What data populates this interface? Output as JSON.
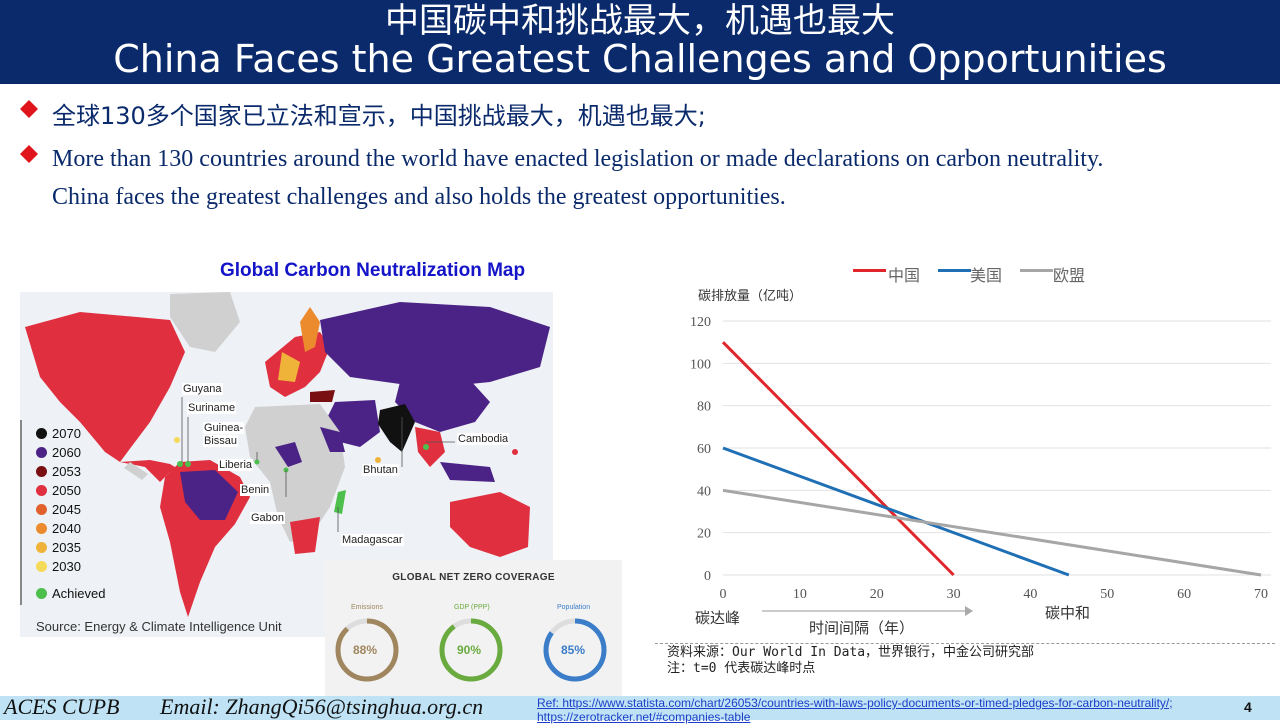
{
  "header": {
    "title_cn": "中国碳中和挑战最大，机遇也最大",
    "title_en": "China Faces the Greatest Challenges and Opportunities"
  },
  "bullets": {
    "cn": "全球130多个国家已立法和宣示，中国挑战最大，机遇也最大;",
    "en_line1": "More than 130 countries around the world have enacted legislation or made declarations on carbon neutrality.",
    "en_line2": "China faces the greatest challenges and also holds the greatest opportunities."
  },
  "map": {
    "title": "Global Carbon Neutralization Map",
    "legend": [
      {
        "label": "2070",
        "color": "#111111"
      },
      {
        "label": "2060",
        "color": "#4b2386"
      },
      {
        "label": "2053",
        "color": "#7a0f12"
      },
      {
        "label": "2050",
        "color": "#e03040"
      },
      {
        "label": "2045",
        "color": "#e2602c"
      },
      {
        "label": "2040",
        "color": "#ec8a2e"
      },
      {
        "label": "2035",
        "color": "#efb33a"
      },
      {
        "label": "2030",
        "color": "#f5da5a"
      },
      {
        "label": "Achieved",
        "color": "#4cbf4c"
      }
    ],
    "labels": {
      "guyana": "Guyana",
      "suriname": "Suriname",
      "guinea_bissau_1": "Guinea-",
      "guinea_bissau_2": "Bissau",
      "liberia": "Liberia",
      "benin": "Benin",
      "gabon": "Gabon",
      "madagascar": "Madagascar",
      "bhutan": "Bhutan",
      "cambodia": "Cambodia"
    },
    "source": "Source: Energy & Climate Intelligence Unit"
  },
  "coverage": {
    "title": "GLOBAL NET ZERO COVERAGE",
    "items": [
      {
        "label": "Emissions",
        "percent": 88,
        "text": "88%",
        "color": "#a0865e"
      },
      {
        "label": "GDP (PPP)",
        "percent": 90,
        "text": "90%",
        "color": "#6aab3f"
      },
      {
        "label": "Population",
        "percent": 85,
        "text": "85%",
        "color": "#3b7dc8"
      }
    ]
  },
  "chart_data": {
    "type": "line",
    "ylabel": "碳排放量（亿吨）",
    "xlabel": "时间间隔（年）",
    "x_start_label": "碳达峰",
    "x_end_label": "碳中和",
    "xlim": [
      0,
      70
    ],
    "ylim": [
      0,
      120
    ],
    "xticks": [
      0,
      10,
      20,
      30,
      40,
      50,
      60,
      70
    ],
    "yticks": [
      0,
      20,
      40,
      60,
      80,
      100,
      120
    ],
    "grid": "horizontal",
    "legend_position": "top",
    "series": [
      {
        "name": "中国",
        "color": "#e0262b",
        "points": [
          [
            0,
            110
          ],
          [
            30,
            0
          ]
        ]
      },
      {
        "name": "美国",
        "color": "#1f6fb5",
        "points": [
          [
            0,
            60
          ],
          [
            45,
            0
          ]
        ]
      },
      {
        "name": "欧盟",
        "color": "#a6a6a6",
        "points": [
          [
            0,
            40
          ],
          [
            70,
            0
          ]
        ]
      }
    ]
  },
  "chart_source": {
    "line1": "资料来源：Our World In Data，世界银行，中金公司研究部",
    "line2": "注：t=0 代表碳达峰时点"
  },
  "footer": {
    "org": "ACES CUPB",
    "email": "Email: ZhangQi56@tsinghua.org.cn",
    "ref_line1": "Ref: https://www.statista.com/chart/26053/countries-with-laws-policy-documents-or-timed-pledges-for-carbon-neutrality/;",
    "ref_line2": "https://zerotracker.net/#companies-table",
    "page": "4"
  }
}
